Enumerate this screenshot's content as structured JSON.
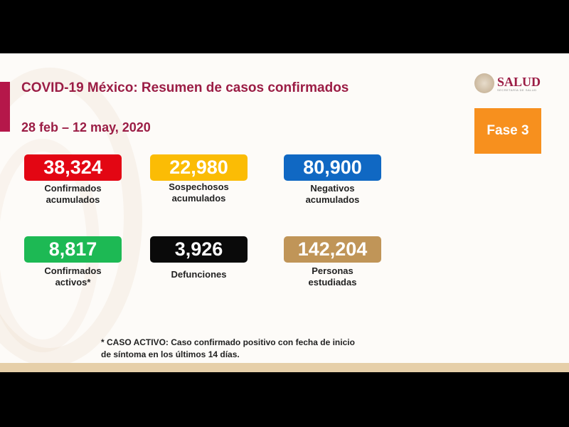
{
  "header": {
    "title": "COVID-19 México: Resumen de casos confirmados",
    "date_range": "28 feb – 12 may, 2020"
  },
  "logo": {
    "text": "SALUD",
    "subtitle": "SECRETARÍA DE SALUD"
  },
  "phase": {
    "label": "Fase 3",
    "color": "#f7901e"
  },
  "stats": [
    {
      "value": "38,324",
      "label1": "Confirmados",
      "label2": "acumulados",
      "color": "#e30613"
    },
    {
      "value": "22,980",
      "label1": "Sospechosos",
      "label2": "acumulados",
      "color": "#fbbc05"
    },
    {
      "value": "80,900",
      "label1": "Negativos",
      "label2": "acumulados",
      "color": "#1068c3"
    },
    {
      "value": "8,817",
      "label1": "Confirmados",
      "label2": "activos*",
      "color": "#1db954"
    },
    {
      "value": "3,926",
      "label1": "Defunciones",
      "label2": "",
      "color": "#0a0a0a"
    },
    {
      "value": "142,204",
      "label1": "Personas",
      "label2": "estudiadas",
      "color": "#c09558"
    }
  ],
  "footnote": {
    "line1": "* CASO ACTIVO: Caso confirmado positivo con fecha de inicio",
    "line2": "de síntoma en los últimos 14 días."
  }
}
